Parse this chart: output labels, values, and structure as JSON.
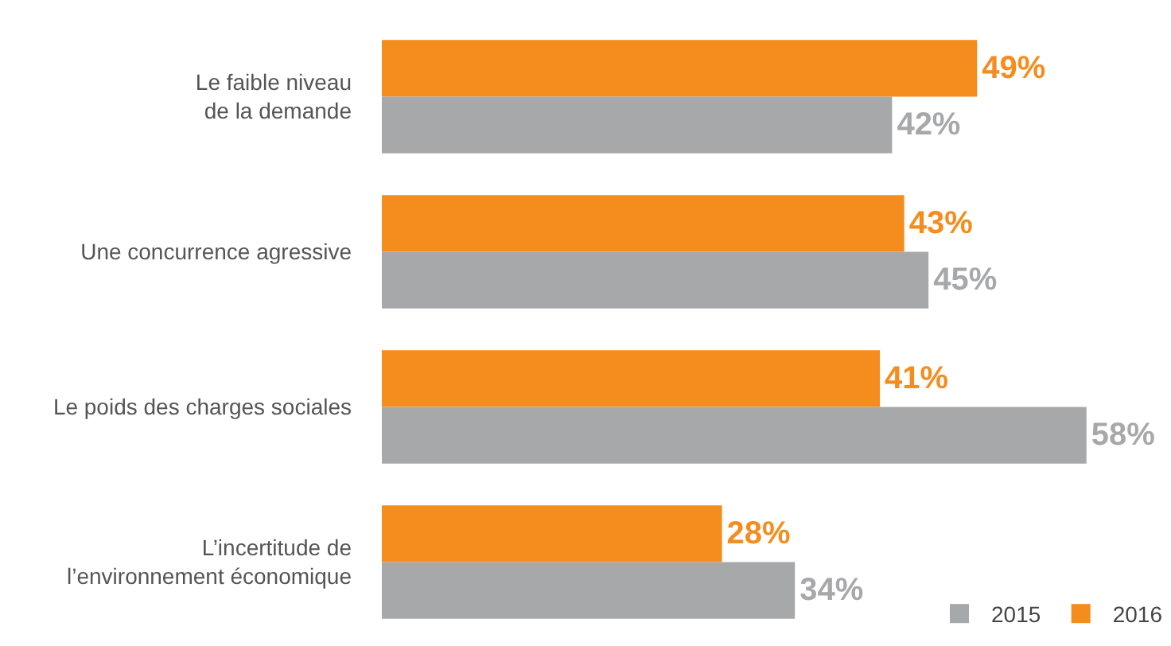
{
  "chart_data": {
    "type": "bar",
    "orientation": "horizontal",
    "categories": [
      "Le faible niveau\nde la demande",
      "Une concurrence agressive",
      "Le poids des charges sociales",
      "L’incertitude de\nl’environnement économique"
    ],
    "series": [
      {
        "name": "2015",
        "color": "#a7a8aa",
        "values": [
          42,
          45,
          58,
          34
        ],
        "value_labels": [
          "42%",
          "45%",
          "58%",
          "34%"
        ]
      },
      {
        "name": "2016",
        "color": "#f58c1e",
        "values": [
          49,
          43,
          41,
          28
        ],
        "value_labels": [
          "49%",
          "43%",
          "41%",
          "28%"
        ]
      }
    ],
    "legend": "bottom right"
  }
}
